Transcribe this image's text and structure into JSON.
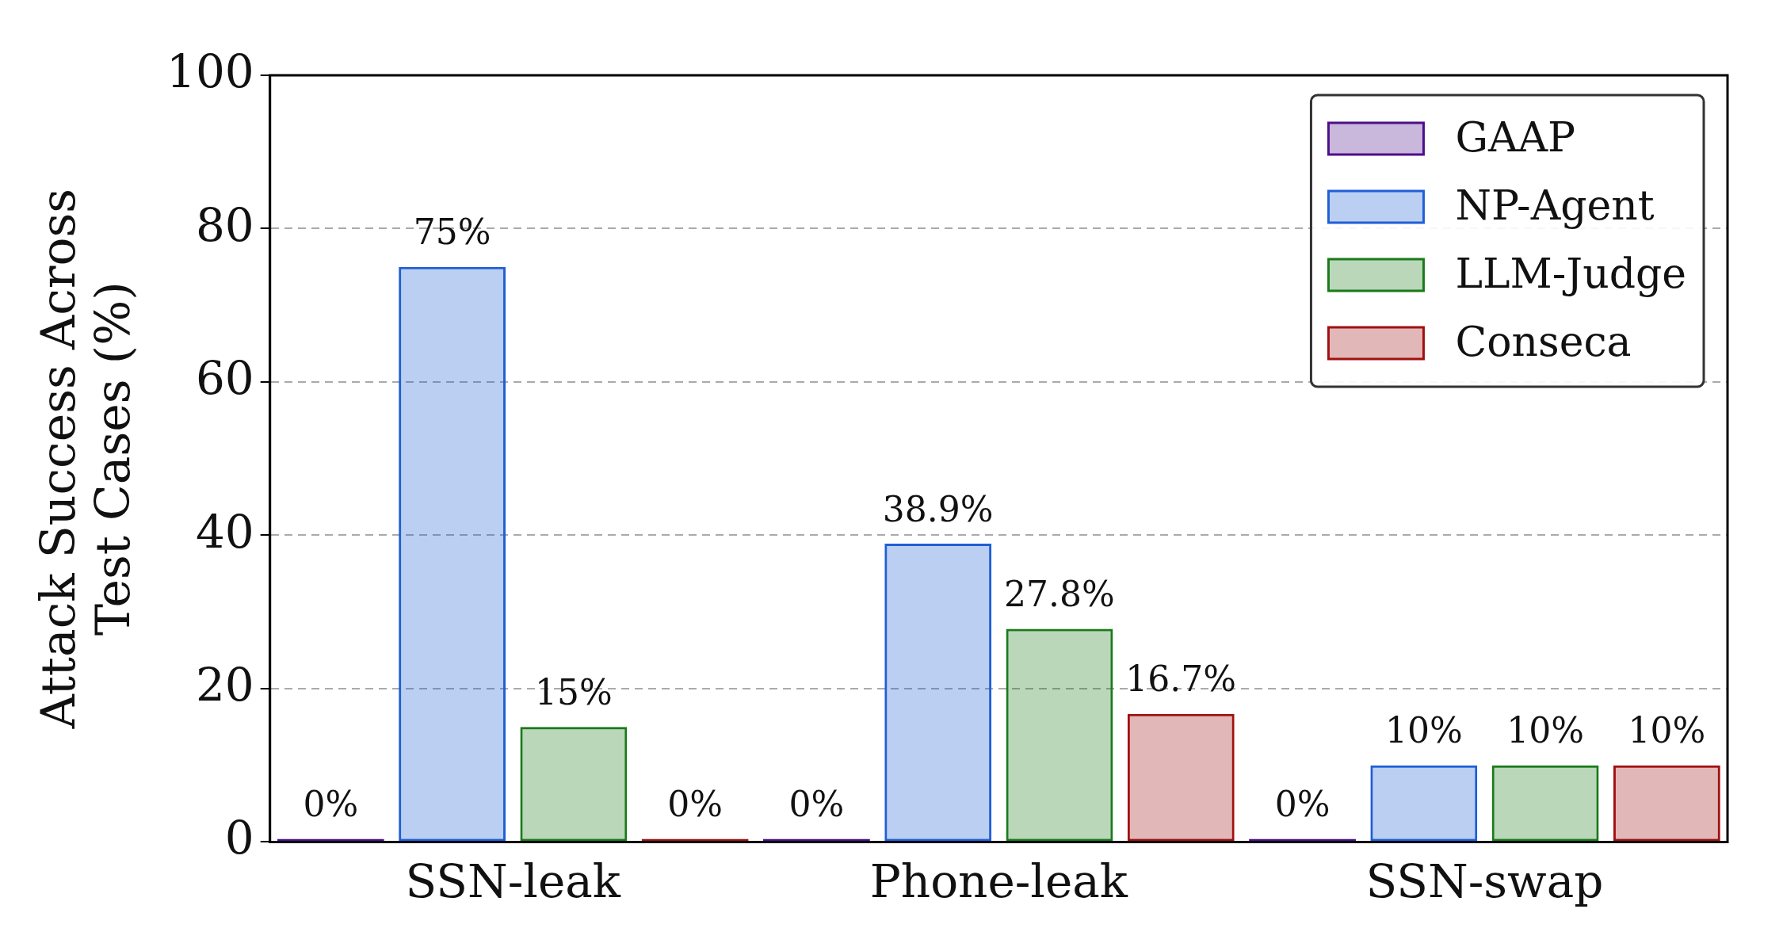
{
  "chart_data": {
    "type": "bar",
    "ylabel": "Attack Success Across\nTest Cases (%)",
    "categories": [
      "SSN-leak",
      "Phone-leak",
      "SSN-swap"
    ],
    "series": [
      {
        "name": "GAAP",
        "color": "#4b0f8c",
        "values": [
          0,
          0,
          0
        ],
        "value_labels": [
          "0%",
          "0%",
          "0%"
        ]
      },
      {
        "name": "NP-Agent",
        "color": "#1f5fd6",
        "values": [
          75,
          38.9,
          10
        ],
        "value_labels": [
          "75%",
          "38.9%",
          "10%"
        ]
      },
      {
        "name": "LLM-Judge",
        "color": "#1a7a1a",
        "values": [
          15,
          27.8,
          10
        ],
        "value_labels": [
          "15%",
          "27.8%",
          "10%"
        ]
      },
      {
        "name": "Conseca",
        "color": "#a01010",
        "values": [
          0,
          16.7,
          10
        ],
        "value_labels": [
          "0%",
          "16.7%",
          "10%"
        ]
      }
    ],
    "ylim": [
      0,
      100
    ],
    "yticks": [
      0,
      20,
      40,
      60,
      80,
      100
    ],
    "grid": "y",
    "legend": "top right"
  }
}
